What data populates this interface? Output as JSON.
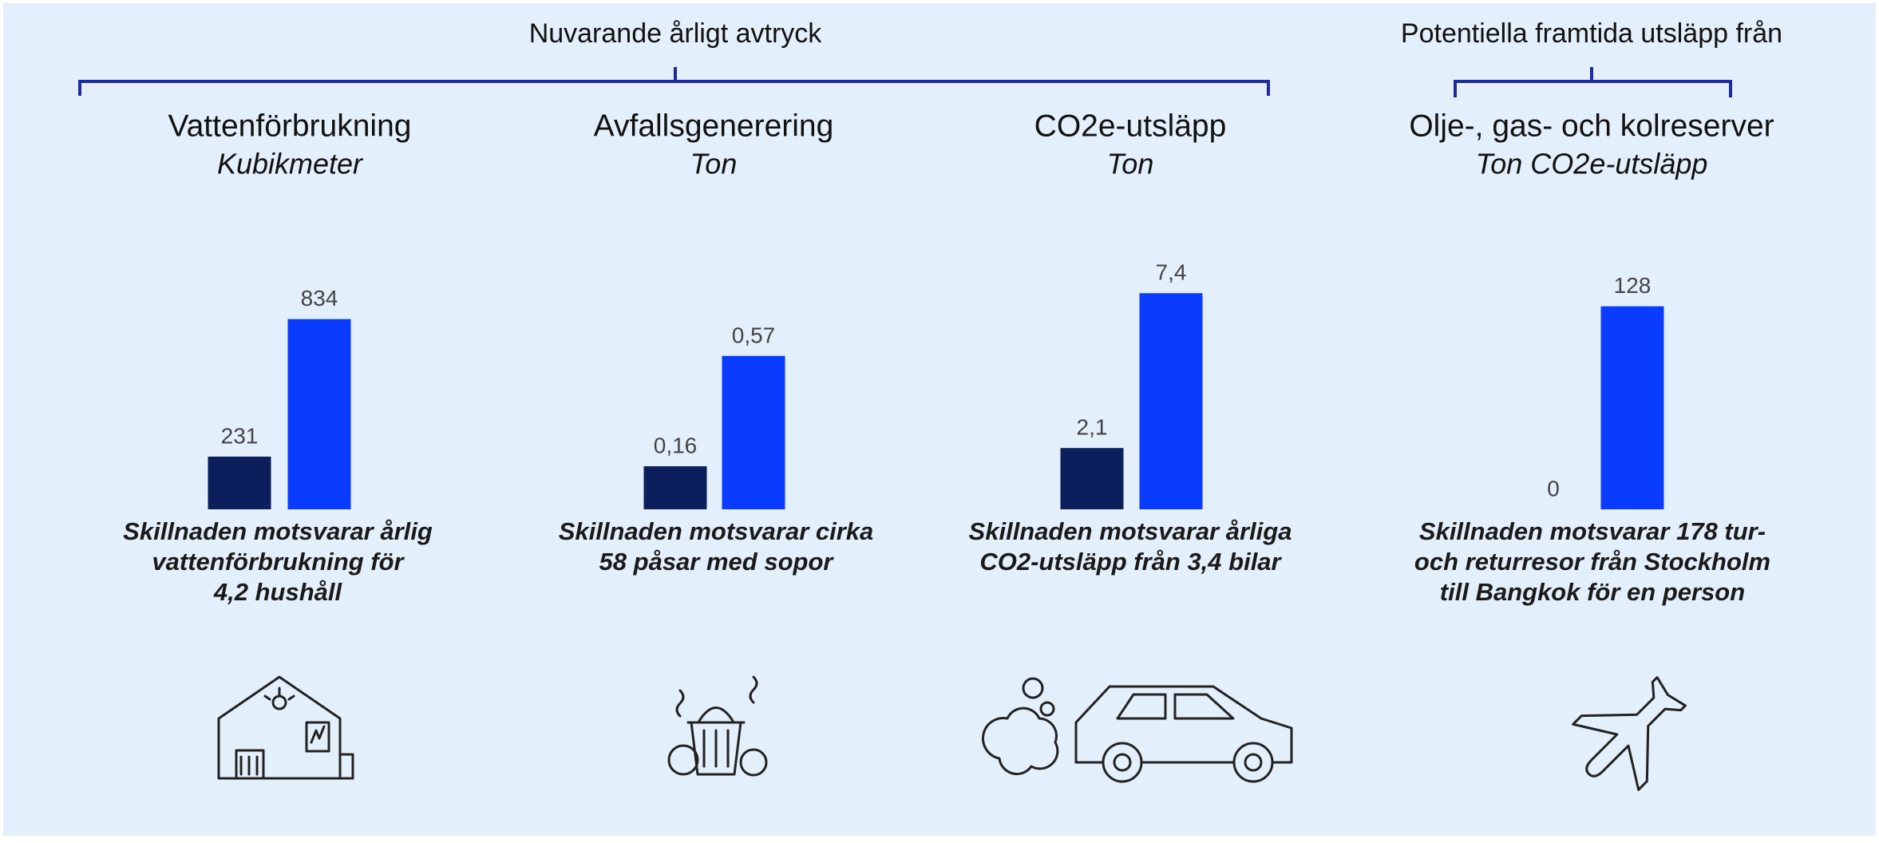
{
  "groups": [
    {
      "title": "Nuvarande årligt avtryck"
    },
    {
      "title": "Potentiella framtida utsläpp från"
    }
  ],
  "chart_data": [
    {
      "type": "bar",
      "title": "Vattenförbrukning",
      "subtitle": "Kubikmeter",
      "categories": [
        null,
        null
      ],
      "values": [
        231,
        834
      ],
      "colors": [
        "#0b1f5c",
        "#0a3cff"
      ],
      "ylim": [
        0,
        1050
      ],
      "annotation": [
        "Skillnaden motsvarar årlig",
        "vattenförbrukning för",
        "4,2 hushåll"
      ]
    },
    {
      "type": "bar",
      "title": "Avfallsgenerering",
      "subtitle": "Ton",
      "categories": [
        null,
        null
      ],
      "values": [
        0.16,
        0.57
      ],
      "value_labels": [
        "0,16",
        "0,57"
      ],
      "colors": [
        "#0b1f5c",
        "#0a3cff"
      ],
      "ylim": [
        0,
        0.89
      ],
      "annotation": [
        "Skillnaden motsvarar cirka",
        "58 påsar med sopor"
      ]
    },
    {
      "type": "bar",
      "title": "CO2e-utsläpp",
      "subtitle": "Ton",
      "categories": [
        null,
        null
      ],
      "values": [
        2.1,
        7.4
      ],
      "value_labels": [
        "2,1",
        "7,4"
      ],
      "colors": [
        "#0b1f5c",
        "#0a3cff"
      ],
      "ylim": [
        0,
        8.2
      ],
      "annotation": [
        "Skillnaden motsvarar årliga",
        "CO2-utsläpp från 3,4 bilar"
      ]
    },
    {
      "type": "bar",
      "title": "Olje-, gas- och kolreserver",
      "subtitle": "Ton CO2e-utsläpp",
      "categories": [
        null,
        null
      ],
      "values": [
        0,
        128
      ],
      "colors": [
        "#0b1f5c",
        "#0a3cff"
      ],
      "ylim": [
        0,
        151
      ],
      "annotation": [
        "Skillnaden motsvarar 178 tur-",
        "och returresor från Stockholm",
        "till Bangkok för en person"
      ]
    }
  ]
}
